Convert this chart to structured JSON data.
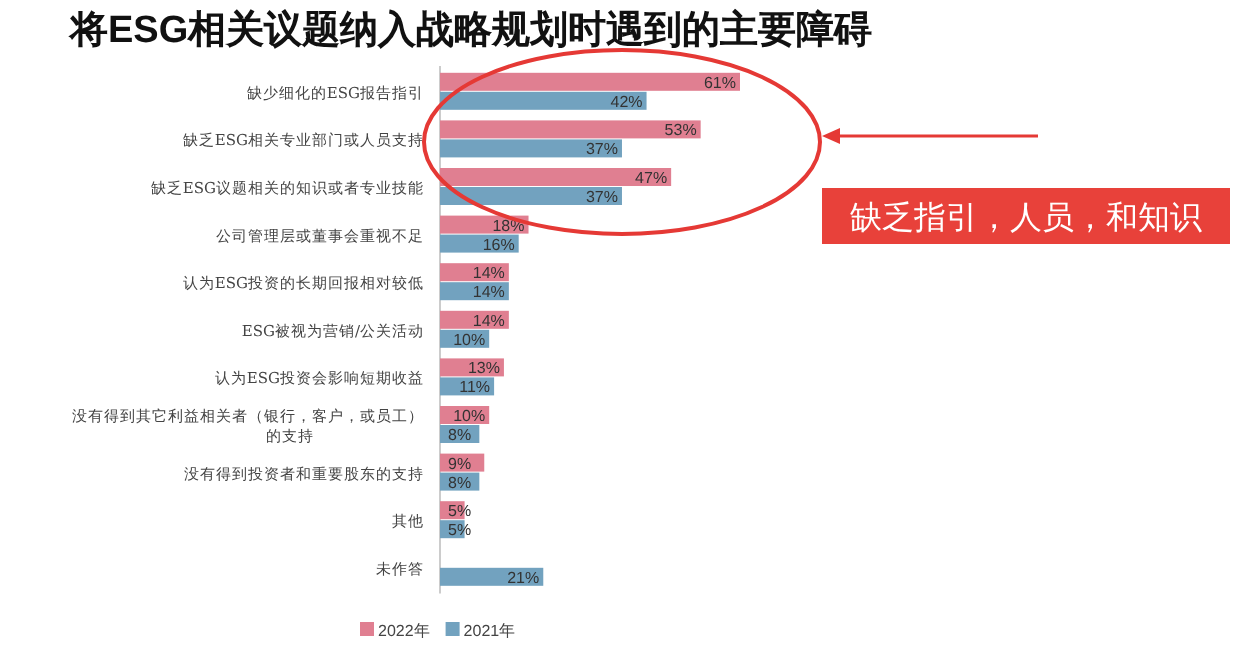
{
  "chart_data": {
    "type": "bar",
    "orientation": "horizontal",
    "title": "将ESG相关议题纳入战略规划时遇到的主要障碍",
    "categories": [
      "缺少细化的ESG报告指引",
      "缺乏ESG相关专业部门或人员支持",
      "缺乏ESG议题相关的知识或者专业技能",
      "公司管理层或董事会重视不足",
      "认为ESG投资的长期回报相对较低",
      "ESG被视为营销/公关活动",
      "认为ESG投资会影响短期收益",
      "没有得到其它利益相关者（银行，客户，或员工）的支持",
      "没有得到投资者和重要股东的支持",
      "其他",
      "未作答"
    ],
    "series": [
      {
        "name": "2022年",
        "color": "#e07f91",
        "values": [
          61,
          53,
          47,
          18,
          14,
          14,
          13,
          10,
          9,
          5,
          null
        ],
        "value_labels": [
          "61%",
          "53%",
          "47%",
          "18%",
          "14%",
          "14%",
          "13%",
          "10%",
          "9%",
          "5%",
          null
        ]
      },
      {
        "name": "2021年",
        "color": "#72a2bf",
        "values": [
          42,
          37,
          37,
          16,
          14,
          10,
          11,
          8,
          8,
          5,
          21
        ],
        "value_labels": [
          "42%",
          "37%",
          "37%",
          "16%",
          "14%",
          "10%",
          "11%",
          "8%",
          "8%",
          "5%",
          "21%"
        ]
      }
    ],
    "legend": "bottom",
    "annotations": [
      "缺乏指引，人员，和知识"
    ]
  }
}
